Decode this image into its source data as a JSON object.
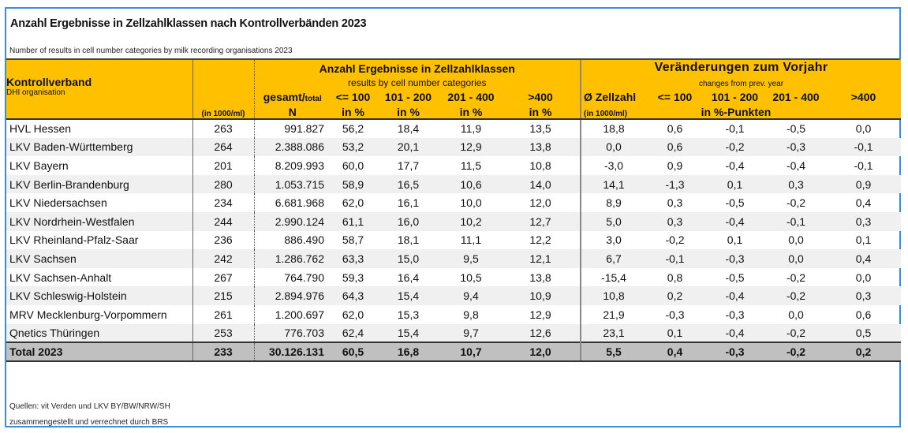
{
  "title": "Anzahl Ergebnisse in Zellzahlklassen nach Kontrollverbänden 2023",
  "subtitle": "Number of results in cell number categories by milk recording organisations 2023",
  "header": {
    "org_label": "Kontrollverband",
    "org_sublabel": "DHI organisation",
    "zellzahl_unit": "(in 1000/ml)",
    "group1_title": "Anzahl Ergebnisse in Zellzahlklassen",
    "group1_subtitle": "results by cell number categories",
    "gesamt_label": "gesamt/",
    "total_label": "total",
    "n_label": "N",
    "cat_le100": "<= 100",
    "cat_101_200": "101 - 200",
    "cat_201_400": "201 - 400",
    "cat_gt400": ">400",
    "in_percent": "in %",
    "group2_title": "Veränderungen zum Vorjahr",
    "group2_subtitle": "changes from prev. year",
    "avg_zellzahl": "Ø Zellzahl",
    "avg_unit": "(in 1000/ml)",
    "in_pp": "in %-Punkten"
  },
  "rows": [
    {
      "name": "HVL Hessen",
      "zellzahl": "263",
      "n": "991.827",
      "p1": "56,2",
      "p2": "18,4",
      "p3": "11,9",
      "p4": "13,5",
      "d0": "18,8",
      "d1": "0,6",
      "d2": "-0,1",
      "d3": "-0,5",
      "d4": "0,0"
    },
    {
      "name": "LKV Baden-Württemberg",
      "zellzahl": "264",
      "n": "2.388.086",
      "p1": "53,2",
      "p2": "20,1",
      "p3": "12,9",
      "p4": "13,8",
      "d0": "0,0",
      "d1": "0,6",
      "d2": "-0,2",
      "d3": "-0,3",
      "d4": "-0,1"
    },
    {
      "name": "LKV Bayern",
      "zellzahl": "201",
      "n": "8.209.993",
      "p1": "60,0",
      "p2": "17,7",
      "p3": "11,5",
      "p4": "10,8",
      "d0": "-3,0",
      "d1": "0,9",
      "d2": "-0,4",
      "d3": "-0,4",
      "d4": "-0,1"
    },
    {
      "name": "LKV Berlin-Brandenburg",
      "zellzahl": "280",
      "n": "1.053.715",
      "p1": "58,9",
      "p2": "16,5",
      "p3": "10,6",
      "p4": "14,0",
      "d0": "14,1",
      "d1": "-1,3",
      "d2": "0,1",
      "d3": "0,3",
      "d4": "0,9"
    },
    {
      "name": "LKV Niedersachsen",
      "zellzahl": "234",
      "n": "6.681.968",
      "p1": "62,0",
      "p2": "16,1",
      "p3": "10,0",
      "p4": "12,0",
      "d0": "8,9",
      "d1": "0,3",
      "d2": "-0,5",
      "d3": "-0,2",
      "d4": "0,4"
    },
    {
      "name": "LKV Nordrhein-Westfalen",
      "zellzahl": "244",
      "n": "2.990.124",
      "p1": "61,1",
      "p2": "16,0",
      "p3": "10,2",
      "p4": "12,7",
      "d0": "5,0",
      "d1": "0,3",
      "d2": "-0,4",
      "d3": "-0,1",
      "d4": "0,3"
    },
    {
      "name": "LKV Rheinland-Pfalz-Saar",
      "zellzahl": "236",
      "n": "886.490",
      "p1": "58,7",
      "p2": "18,1",
      "p3": "11,1",
      "p4": "12,2",
      "d0": "3,0",
      "d1": "-0,2",
      "d2": "0,1",
      "d3": "0,0",
      "d4": "0,1"
    },
    {
      "name": "LKV Sachsen",
      "zellzahl": "242",
      "n": "1.286.762",
      "p1": "63,3",
      "p2": "15,0",
      "p3": "9,5",
      "p4": "12,1",
      "d0": "6,7",
      "d1": "-0,1",
      "d2": "-0,3",
      "d3": "0,0",
      "d4": "0,4"
    },
    {
      "name": "LKV Sachsen-Anhalt",
      "zellzahl": "267",
      "n": "764.790",
      "p1": "59,3",
      "p2": "16,4",
      "p3": "10,5",
      "p4": "13,8",
      "d0": "-15,4",
      "d1": "0,8",
      "d2": "-0,5",
      "d3": "-0,2",
      "d4": "0,0"
    },
    {
      "name": "LKV Schleswig-Holstein",
      "zellzahl": "215",
      "n": "2.894.976",
      "p1": "64,3",
      "p2": "15,4",
      "p3": "9,4",
      "p4": "10,9",
      "d0": "10,8",
      "d1": "0,2",
      "d2": "-0,4",
      "d3": "-0,2",
      "d4": "0,3"
    },
    {
      "name": "MRV Mecklenburg-Vorpommern",
      "zellzahl": "261",
      "n": "1.200.697",
      "p1": "62,0",
      "p2": "15,3",
      "p3": "9,8",
      "p4": "12,9",
      "d0": "21,9",
      "d1": "-0,3",
      "d2": "-0,3",
      "d3": "0,0",
      "d4": "0,6"
    },
    {
      "name": "Qnetics Thüringen",
      "zellzahl": "253",
      "n": "776.703",
      "p1": "62,4",
      "p2": "15,4",
      "p3": "9,7",
      "p4": "12,6",
      "d0": "23,1",
      "d1": "0,1",
      "d2": "-0,4",
      "d3": "-0,2",
      "d4": "0,5"
    }
  ],
  "total": {
    "name": "Total 2023",
    "zellzahl": "233",
    "n": "30.126.131",
    "p1": "60,5",
    "p2": "16,8",
    "p3": "10,7",
    "p4": "12,0",
    "d0": "5,5",
    "d1": "0,4",
    "d2": "-0,3",
    "d3": "-0,2",
    "d4": "0,2"
  },
  "footer": {
    "sources": "Quellen: vit Verden und LKV BY/BW/NRW/SH",
    "compiled": "zusammengestellt und verrechnet durch BRS"
  },
  "colors": {
    "header_bg": "#ffc000",
    "total_bg": "#c0c0c0",
    "alt_row_bg": "#f0f0f0",
    "frame_border": "#3a8ee0"
  }
}
